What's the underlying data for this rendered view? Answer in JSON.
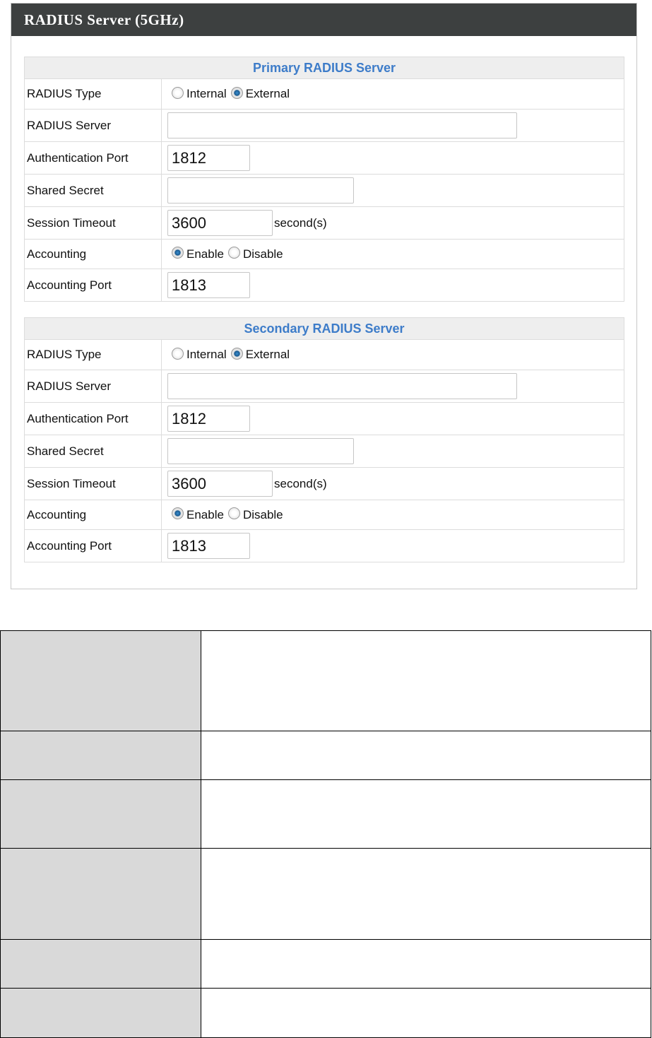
{
  "panel": {
    "title": "RADIUS Server (5GHz)"
  },
  "sections": [
    {
      "title": "Primary RADIUS Server",
      "radius_type": {
        "label": "RADIUS Type",
        "options": [
          "Internal",
          "External"
        ],
        "selected": "External"
      },
      "radius_server": {
        "label": "RADIUS Server",
        "value": ""
      },
      "auth_port": {
        "label": "Authentication Port",
        "value": "1812"
      },
      "shared_secret": {
        "label": "Shared Secret",
        "value": ""
      },
      "session_timeout": {
        "label": "Session Timeout",
        "value": "3600",
        "unit": "second(s)"
      },
      "accounting": {
        "label": "Accounting",
        "options": [
          "Enable",
          "Disable"
        ],
        "selected": "Enable"
      },
      "accounting_port": {
        "label": "Accounting Port",
        "value": "1813"
      }
    },
    {
      "title": "Secondary RADIUS Server",
      "radius_type": {
        "label": "RADIUS Type",
        "options": [
          "Internal",
          "External"
        ],
        "selected": "External"
      },
      "radius_server": {
        "label": "RADIUS Server",
        "value": ""
      },
      "auth_port": {
        "label": "Authentication Port",
        "value": "1812"
      },
      "shared_secret": {
        "label": "Shared Secret",
        "value": ""
      },
      "session_timeout": {
        "label": "Session Timeout",
        "value": "3600",
        "unit": "second(s)"
      },
      "accounting": {
        "label": "Accounting",
        "options": [
          "Enable",
          "Disable"
        ],
        "selected": "Enable"
      },
      "accounting_port": {
        "label": "Accounting Port",
        "value": "1813"
      }
    }
  ],
  "colors": {
    "header_bg": "#3d4040",
    "section_title": "#3d7cc9",
    "desc_key_bg": "#d9d9d9"
  }
}
